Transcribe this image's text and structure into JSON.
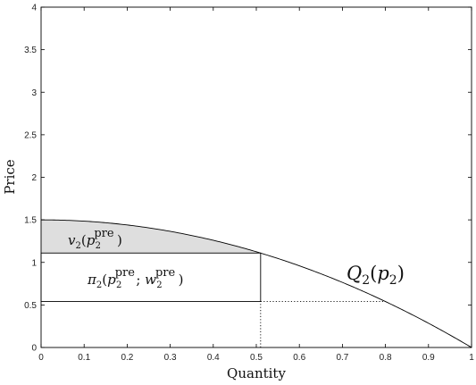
{
  "chart_data": {
    "type": "line",
    "title": "",
    "xlabel": "Quantity",
    "ylabel": "Price",
    "xlim": [
      0,
      1
    ],
    "ylim": [
      0,
      4
    ],
    "x_ticks": [
      "0",
      "0.1",
      "0.2",
      "0.3",
      "0.4",
      "0.5",
      "0.6",
      "0.7",
      "0.8",
      "0.9",
      "1"
    ],
    "y_ticks": [
      "0",
      "0.5",
      "1",
      "1.5",
      "2",
      "2.5",
      "3",
      "3.5",
      "4"
    ],
    "grid": false,
    "series": [
      {
        "name": "Q2(p2)",
        "x": [
          0,
          0.1,
          0.2,
          0.3,
          0.4,
          0.5,
          0.6,
          0.7,
          0.8,
          0.9,
          1
        ],
        "y": [
          1.5,
          1.485,
          1.44,
          1.365,
          1.26,
          1.125,
          0.96,
          0.765,
          0.54,
          0.285,
          0
        ]
      }
    ],
    "rectangle": {
      "x": [
        0,
        0.51
      ],
      "y": [
        0.54,
        1.11
      ]
    },
    "shaded_region": {
      "x": [
        0,
        0.51
      ],
      "y_lower": 1.11
    },
    "dotted_lines": [
      {
        "x": [
          0.51,
          0.51
        ],
        "y": [
          0,
          0.54
        ]
      },
      {
        "x": [
          0.51,
          0.8
        ],
        "y": [
          0.54,
          0.54
        ]
      }
    ],
    "annotations": {
      "curve_label": {
        "base": "Q",
        "sub": "2",
        "arg_base": "p",
        "arg_sub": "2"
      },
      "shaded_label": {
        "base": "v",
        "sub": "2",
        "arg_base": "p",
        "arg_sub": "2",
        "arg_sup": "pre"
      },
      "rect_label": {
        "base": "π",
        "sub": "2",
        "arg1_base": "p",
        "arg1_sub": "2",
        "arg1_sup": "pre",
        "arg2_base": "w",
        "arg2_sub": "2",
        "arg2_sup": "pre"
      }
    },
    "colors": {
      "line": "#000000",
      "shade": "#dedede"
    }
  }
}
